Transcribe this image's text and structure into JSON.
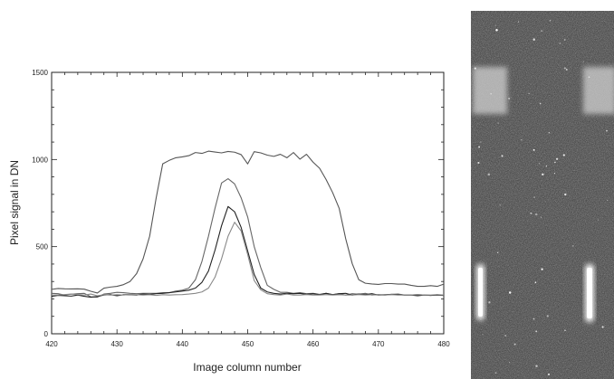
{
  "chart_data": {
    "type": "line",
    "title": "",
    "xlabel": "Image column number",
    "ylabel": "Pixel signal in DN",
    "xlim": [
      420,
      480
    ],
    "ylim": [
      0,
      1500
    ],
    "x_ticks": [
      420,
      430,
      440,
      450,
      460,
      470,
      480
    ],
    "y_ticks": [
      0,
      500,
      1000,
      1500
    ],
    "grid": false,
    "legend": "none",
    "series": [
      {
        "color": "#555555",
        "x": [
          420,
          421,
          422,
          423,
          424,
          425,
          426,
          427,
          428,
          429,
          430,
          431,
          432,
          433,
          434,
          435,
          436,
          437,
          438,
          439,
          440,
          441,
          442,
          443,
          444,
          445,
          446,
          447,
          448,
          449,
          450,
          451,
          452,
          453,
          454,
          455,
          456,
          457,
          458,
          459,
          460,
          461,
          462,
          463,
          464,
          465,
          466,
          467,
          468,
          469,
          470,
          471,
          472,
          473,
          474,
          475,
          476,
          477,
          478,
          479,
          480
        ],
        "y": [
          255,
          260,
          258,
          257,
          258,
          256,
          244,
          234,
          262,
          268,
          272,
          282,
          300,
          345,
          430,
          560,
          780,
          975,
          995,
          1010,
          1015,
          1022,
          1040,
          1035,
          1048,
          1043,
          1038,
          1046,
          1042,
          1028,
          975,
          1045,
          1038,
          1025,
          1018,
          1030,
          1010,
          1040,
          1002,
          1030,
          985,
          950,
          885,
          810,
          720,
          545,
          402,
          310,
          290,
          286,
          283,
          288,
          288,
          285,
          285,
          278,
          272,
          272,
          276,
          272,
          285
        ]
      },
      {
        "color": "#666666",
        "x": [
          420,
          421,
          422,
          423,
          424,
          425,
          426,
          427,
          428,
          429,
          430,
          431,
          432,
          433,
          434,
          435,
          436,
          437,
          438,
          439,
          440,
          441,
          442,
          443,
          444,
          445,
          446,
          447,
          448,
          449,
          450,
          451,
          452,
          453,
          454,
          455,
          456,
          457,
          458,
          459,
          460,
          461,
          462,
          463,
          464,
          465,
          466,
          467,
          468,
          469,
          470,
          471,
          472,
          473,
          474,
          475,
          476,
          477,
          478,
          479,
          480
        ],
        "y": [
          232,
          230,
          222,
          227,
          230,
          232,
          212,
          210,
          228,
          232,
          238,
          236,
          232,
          230,
          232,
          232,
          232,
          236,
          236,
          245,
          250,
          262,
          310,
          415,
          560,
          720,
          865,
          890,
          860,
          780,
          670,
          500,
          380,
          278,
          255,
          238,
          238,
          232,
          236,
          230,
          232,
          226,
          232,
          225,
          230,
          222,
          230,
          227,
          232,
          222,
          225,
          222,
          226,
          228,
          222,
          222,
          225,
          222,
          220,
          224,
          220
        ]
      },
      {
        "color": "#222222",
        "x": [
          420,
          421,
          422,
          423,
          424,
          425,
          426,
          427,
          428,
          429,
          430,
          431,
          432,
          433,
          434,
          435,
          436,
          437,
          438,
          439,
          440,
          441,
          442,
          443,
          444,
          445,
          446,
          447,
          448,
          449,
          450,
          451,
          452,
          453,
          454,
          455,
          456,
          457,
          458,
          459,
          460,
          461,
          462,
          463,
          464,
          465,
          466,
          467,
          468,
          469,
          470,
          471,
          472,
          473,
          474,
          475,
          476,
          477,
          478,
          479,
          480
        ],
        "y": [
          215,
          220,
          218,
          216,
          222,
          215,
          210,
          214,
          222,
          225,
          218,
          224,
          225,
          222,
          228,
          226,
          230,
          232,
          236,
          240,
          245,
          250,
          262,
          295,
          360,
          480,
          620,
          730,
          700,
          610,
          475,
          340,
          262,
          240,
          232,
          228,
          232,
          230,
          232,
          226,
          230,
          224,
          232,
          224,
          230,
          232,
          222,
          228,
          225,
          230,
          222,
          224,
          226,
          225,
          222,
          222,
          218,
          222,
          220,
          222,
          220
        ]
      },
      {
        "color": "#888888",
        "x": [
          420,
          421,
          422,
          423,
          424,
          425,
          426,
          427,
          428,
          429,
          430,
          431,
          432,
          433,
          434,
          435,
          436,
          437,
          438,
          439,
          440,
          441,
          442,
          443,
          444,
          445,
          446,
          447,
          448,
          449,
          450,
          451,
          452,
          453,
          454,
          455,
          456,
          457,
          458,
          459,
          460,
          461,
          462,
          463,
          464,
          465,
          466,
          467,
          468,
          469,
          470,
          471,
          472,
          473,
          474,
          475,
          476,
          477,
          478,
          479,
          480
        ],
        "y": [
          222,
          222,
          225,
          228,
          225,
          222,
          228,
          218,
          224,
          222,
          224,
          222,
          226,
          224,
          222,
          224,
          220,
          224,
          222,
          224,
          225,
          228,
          232,
          240,
          262,
          325,
          430,
          560,
          640,
          590,
          455,
          305,
          252,
          230,
          225,
          222,
          228,
          222,
          222,
          225,
          222,
          222,
          225,
          222,
          224,
          222,
          222,
          225,
          222,
          224,
          222,
          222,
          225,
          222,
          222,
          222,
          225,
          222,
          222,
          225,
          222
        ]
      }
    ]
  },
  "detector_image": {
    "description_icon": "detector-frame-image",
    "background": "#3a3a3a",
    "blob_color": "#d9d9d9"
  }
}
